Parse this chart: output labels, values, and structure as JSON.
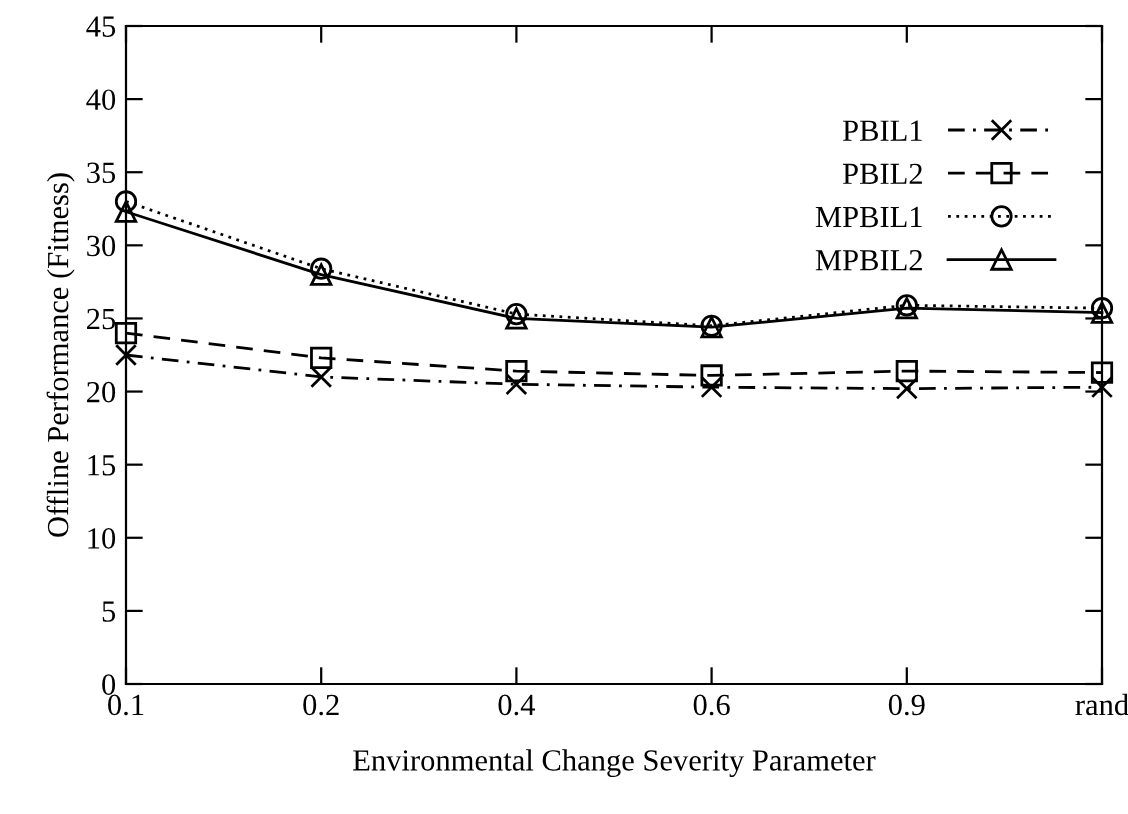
{
  "chart_data": {
    "type": "line",
    "xlabel": "Environmental Change Severity Parameter",
    "ylabel": "Offline Performance (Fitness)",
    "categories": [
      "0.1",
      "0.2",
      "0.4",
      "0.6",
      "0.9",
      "rand"
    ],
    "ylim": [
      0,
      45
    ],
    "yticks": [
      0,
      5,
      10,
      15,
      20,
      25,
      30,
      35,
      40,
      45
    ],
    "grid": false,
    "legend": "top right",
    "series": [
      {
        "name": "PBIL1",
        "color": "#000000",
        "marker": "cross",
        "line_style": "dashdot",
        "values": [
          22.5,
          21.0,
          20.5,
          20.3,
          20.2,
          20.3
        ]
      },
      {
        "name": "PBIL2",
        "color": "#000000",
        "marker": "square",
        "line_style": "dashed",
        "values": [
          24.0,
          22.3,
          21.4,
          21.1,
          21.4,
          21.3
        ]
      },
      {
        "name": "MPBIL1",
        "color": "#000000",
        "marker": "circle",
        "line_style": "dotted",
        "values": [
          33.0,
          28.4,
          25.3,
          24.5,
          25.9,
          25.7
        ]
      },
      {
        "name": "MPBIL2",
        "color": "#000000",
        "marker": "triangle",
        "line_style": "solid",
        "values": [
          32.3,
          28.0,
          25.0,
          24.4,
          25.7,
          25.4
        ]
      }
    ]
  }
}
